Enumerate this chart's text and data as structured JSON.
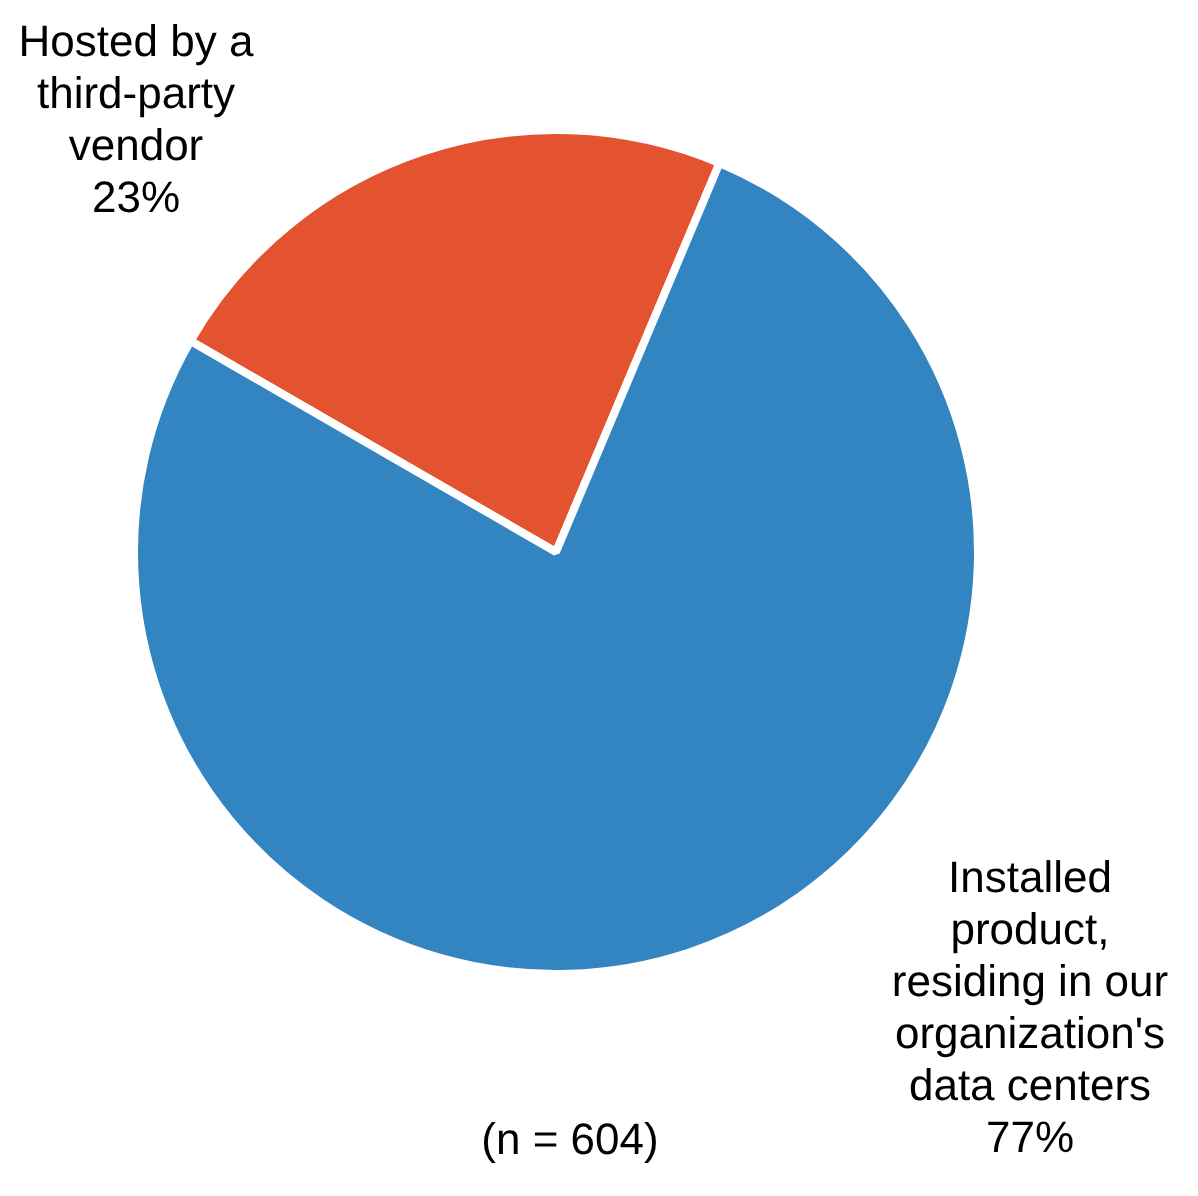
{
  "chart_data": {
    "type": "pie",
    "categories": [
      "Hosted by a third-party vendor",
      "Installed product, residing in our organization's data centers"
    ],
    "values": [
      23,
      77
    ],
    "colors": [
      "#e4532f",
      "#3385c2"
    ],
    "value_labels": [
      "23%",
      "77%"
    ],
    "legend": false,
    "annotations": [
      "(n = 604)"
    ]
  }
}
